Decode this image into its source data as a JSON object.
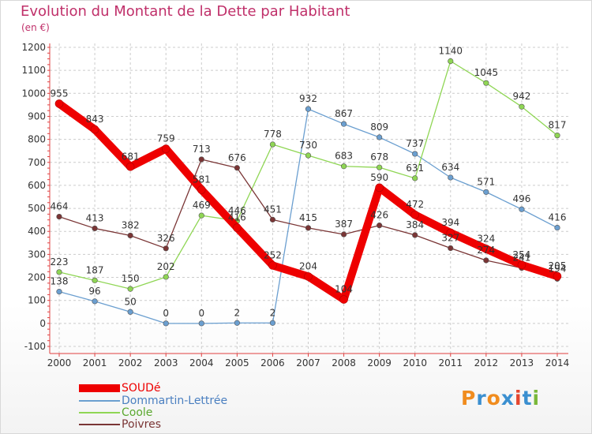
{
  "header": {
    "title": "Evolution du Montant de la Dette par Habitant",
    "unit": "(en €)"
  },
  "logo": {
    "letters": [
      "P",
      "r",
      "o",
      "x",
      "i",
      "t",
      "i"
    ],
    "colors": [
      "#f08c1e",
      "#3a8fd0",
      "#f08c1e",
      "#3a8fd0",
      "#e5462e",
      "#3a8fd0",
      "#7ab83a"
    ]
  },
  "chart_data": {
    "type": "line",
    "title": "Evolution du Montant de la Dette par Habitant",
    "ylabel": "(en €)",
    "xlabel": "",
    "x": [
      "2000",
      "2001",
      "2002",
      "2003",
      "2004",
      "2005",
      "2006",
      "2007",
      "2008",
      "2009",
      "2010",
      "2011",
      "2012",
      "2013",
      "2014"
    ],
    "ylim": [
      -100,
      1200
    ],
    "yticks": [
      -100,
      0,
      100,
      200,
      300,
      400,
      500,
      600,
      700,
      800,
      900,
      1000,
      1100,
      1200
    ],
    "grid": true,
    "legend_position": "bottom-left",
    "series": [
      {
        "name": "SOUDé",
        "color": "#ee0000",
        "width": 10,
        "values": [
          955,
          843,
          681,
          759,
          581,
          416,
          252,
          204,
          104,
          590,
          472,
          394,
          324,
          254,
          205
        ]
      },
      {
        "name": "Dommartin-Lettrée",
        "color": "#6b9fd0",
        "width": 1.3,
        "values": [
          138,
          96,
          50,
          0,
          0,
          2,
          2,
          932,
          867,
          809,
          737,
          634,
          571,
          496,
          416
        ]
      },
      {
        "name": "Coole",
        "color": "#8fd654",
        "width": 1.3,
        "values": [
          223,
          187,
          150,
          202,
          469,
          446,
          778,
          730,
          683,
          678,
          631,
          1140,
          1045,
          942,
          817
        ]
      },
      {
        "name": "Poivres",
        "color": "#7a3535",
        "width": 1.3,
        "values": [
          464,
          413,
          382,
          326,
          713,
          676,
          451,
          415,
          387,
          426,
          384,
          327,
          274,
          241,
          194
        ]
      }
    ]
  }
}
